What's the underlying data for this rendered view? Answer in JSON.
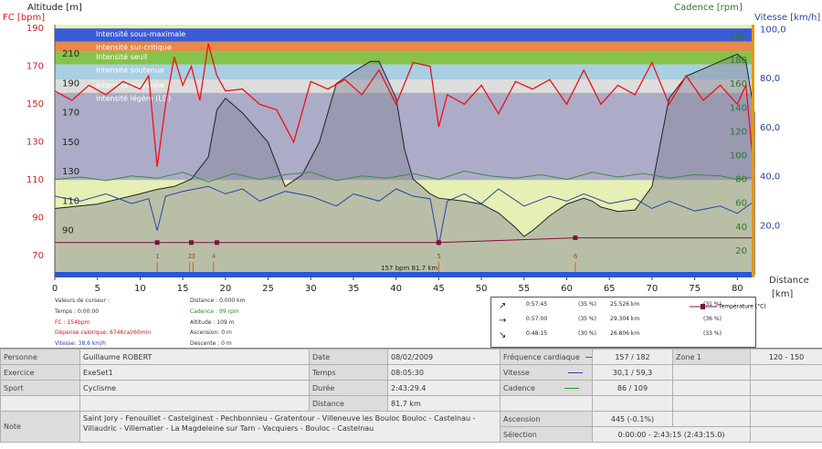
{
  "axes": {
    "left_title": "FC [bpm]",
    "alt_title": "Altitude  [m]",
    "cadence_title": "Cadence [rpm]",
    "speed_title": "Vitesse [km/h]",
    "distance_title": "Distance",
    "distance_unit": "[km]",
    "fc_ticks": [
      "190",
      "170",
      "150",
      "130",
      "110",
      "90",
      "70"
    ],
    "alt_ticks": [
      "210",
      "190",
      "170",
      "150",
      "130",
      "110",
      "90"
    ],
    "cad_ticks": [
      "200",
      "180",
      "160",
      "140",
      "120",
      "100",
      "80",
      "60",
      "40",
      "20"
    ],
    "speed_ticks": [
      "100,0",
      "80,0",
      "60,0",
      "40,0",
      "20,0"
    ],
    "x_ticks": [
      "0",
      "5",
      "10",
      "15",
      "20",
      "25",
      "30",
      "35",
      "40",
      "45",
      "50",
      "55",
      "60",
      "65",
      "70",
      "75",
      "80"
    ]
  },
  "zones": [
    {
      "label": "Intensité sous-maximale",
      "color": "#3b5bd6"
    },
    {
      "label": "Intensité sur-critique",
      "color": "#e58a4a"
    },
    {
      "label": "Intensité seuil",
      "color": "#86c34a"
    },
    {
      "label": "Intensité soutenue",
      "color": "#a9cfe2"
    },
    {
      "label": "Intensité moyenne",
      "color": "#dddddd"
    },
    {
      "label": "Intensité légère (LD)",
      "color": "#acacc8"
    }
  ],
  "chart_data": {
    "type": "line",
    "x_range": [
      0,
      82
    ],
    "xlabel": "Distance",
    "x_unit": "[km]",
    "ylim_fc": [
      60,
      192
    ],
    "ylim_altitude": [
      60,
      230
    ],
    "ylim_cadence": [
      0,
      210
    ],
    "ylim_speed": [
      0,
      102
    ],
    "series": [
      {
        "name": "Fréquence cardiaque",
        "axis": "fc",
        "color": "#ee1111",
        "x": [
          0,
          2,
          4,
          6,
          8,
          10,
          11,
          12,
          13,
          14,
          15,
          16,
          17,
          18,
          19,
          20,
          22,
          24,
          26,
          28,
          30,
          32,
          34,
          36,
          38,
          40,
          42,
          44,
          45,
          46,
          48,
          50,
          52,
          54,
          56,
          58,
          60,
          62,
          64,
          66,
          68,
          70,
          72,
          74,
          76,
          78,
          80,
          81,
          82
        ],
        "y": [
          157,
          152,
          160,
          155,
          162,
          158,
          165,
          117,
          150,
          175,
          160,
          170,
          152,
          182,
          165,
          157,
          158,
          150,
          147,
          130,
          162,
          158,
          163,
          155,
          168,
          150,
          172,
          170,
          138,
          155,
          150,
          160,
          145,
          162,
          158,
          163,
          150,
          168,
          150,
          160,
          155,
          172,
          150,
          165,
          152,
          160,
          150,
          160,
          112
        ]
      },
      {
        "name": "Cadence",
        "axis": "cadence",
        "color": "#3d8c3d",
        "x": [
          0,
          3,
          6,
          9,
          12,
          15,
          18,
          21,
          24,
          27,
          30,
          33,
          36,
          39,
          42,
          45,
          48,
          51,
          54,
          57,
          60,
          63,
          66,
          69,
          72,
          75,
          78,
          80,
          82
        ],
        "y": [
          80,
          82,
          79,
          83,
          81,
          86,
          78,
          85,
          80,
          84,
          86,
          79,
          83,
          81,
          85,
          80,
          87,
          83,
          81,
          84,
          80,
          86,
          82,
          85,
          81,
          84,
          83,
          80,
          82
        ]
      },
      {
        "name": "Vitesse",
        "axis": "speed",
        "color": "#2844a8",
        "x": [
          0,
          3,
          6,
          9,
          11,
          12,
          13,
          15,
          18,
          20,
          22,
          24,
          27,
          30,
          33,
          35,
          38,
          40,
          42,
          44,
          45,
          46,
          48,
          50,
          52,
          55,
          58,
          60,
          62,
          65,
          68,
          70,
          72,
          75,
          78,
          80,
          82
        ],
        "y": [
          32,
          30,
          33,
          29,
          31,
          18,
          32,
          34,
          36,
          33,
          35,
          30,
          34,
          32,
          28,
          33,
          30,
          35,
          32,
          31,
          12,
          30,
          33,
          29,
          35,
          28,
          32,
          30,
          33,
          29,
          31,
          27,
          30,
          26,
          28,
          25,
          30
        ]
      },
      {
        "name": "Altitude",
        "axis": "altitude",
        "color": "#222222",
        "x": [
          0,
          5,
          10,
          12,
          14,
          16,
          18,
          19,
          20,
          22,
          25,
          27,
          29,
          31,
          33,
          35,
          37,
          38,
          40,
          41,
          42,
          43,
          44,
          45,
          48,
          50,
          52,
          54,
          55,
          56,
          57,
          58,
          60,
          62,
          63,
          64,
          66,
          68,
          70,
          71,
          72,
          74,
          76,
          78,
          80,
          81,
          82
        ],
        "y": [
          105,
          108,
          115,
          118,
          120,
          125,
          140,
          172,
          180,
          170,
          150,
          120,
          128,
          150,
          190,
          198,
          205,
          205,
          180,
          145,
          125,
          120,
          115,
          112,
          110,
          108,
          102,
          92,
          86,
          90,
          95,
          100,
          108,
          112,
          110,
          106,
          103,
          104,
          120,
          150,
          180,
          195,
          200,
          205,
          210,
          205,
          170
        ]
      },
      {
        "name": "Température",
        "axis": "cadence",
        "color": "#8a0a3c",
        "x": [
          0,
          12,
          16,
          19,
          45,
          61,
          82
        ],
        "y": [
          27,
          27,
          27,
          27,
          27,
          31,
          31
        ]
      }
    ],
    "laps": [
      {
        "label": "1",
        "x": 12
      },
      {
        "label": "2",
        "x": 15.8
      },
      {
        "label": "3",
        "x": 16.2
      },
      {
        "label": "4",
        "x": 18.6
      },
      {
        "label": "5",
        "x": 45
      },
      {
        "label": "6",
        "x": 61
      }
    ],
    "bottom_marker": "157 bpm 81.7 km"
  },
  "cursor": {
    "title": "Valeurs de curseur :",
    "temps": "Temps : 0:00:00",
    "fc": "FC : 154bpm",
    "depense": "Dépense calorique: 674Kcal/60min",
    "vitesse": "Vitesse: 38,6 km/h",
    "distance": "Distance : 0.000 km",
    "cadence": "Cadence : 99 rpm",
    "altitude": "Altitude : 109 m",
    "ascension": "Ascension: 0 m",
    "descente": "Descente : 0 m",
    "colors": {
      "fc": "#dd1111",
      "depense": "#dd1111",
      "vitesse": "#2844a8",
      "cadence": "#2a8a2a"
    }
  },
  "summary": {
    "rows": [
      {
        "dir": "↗",
        "time": "0:57:45",
        "pct_time": "(35 %)",
        "dist": "25.526 km",
        "pct_dist": "(31 %)"
      },
      {
        "dir": "→",
        "time": "0:57:00",
        "pct_time": "(35 %)",
        "dist": "29.304 km",
        "pct_dist": "(36 %)"
      },
      {
        "dir": "↘",
        "time": "0:48:15",
        "pct_time": "(30 %)",
        "dist": "26.806 km",
        "pct_dist": "(33 %)"
      }
    ],
    "temperature_legend": "Température (°C)"
  },
  "info": {
    "personne_label": "Personne",
    "personne": "Guillaume ROBERT",
    "exercice_label": "Exercice",
    "exercice": "ExeSet1",
    "sport_label": "Sport",
    "sport": "Cyclisme",
    "note_label": "Note",
    "note": "Saint Jory - Fenouillet - Castelginest - Pechbonnieu - Gratentour - Villeneuve les Bouloc Bouloc - Castelnau - Villaudric - Villematier - La Magdeleine sur Tarn - Vacquiers - Bouloc - Castelnau",
    "date_label": "Date",
    "date": "08/02/2009",
    "temps_label": "Temps",
    "temps": "08:05:30",
    "duree_label": "Durée",
    "duree": "2:43:29.4",
    "distance_label": "Distance",
    "distance": "81.7 km",
    "fc_label": "Fréquence cardiaque",
    "fc": "157 / 182",
    "vitesse_label": "Vitesse",
    "vitesse": "30,1 / 59,3",
    "cadence_label": "Cadence",
    "cadence": "86 / 109",
    "ascension_label": "Ascension",
    "ascension": "445 (-0.1%)",
    "selection_label": "Sélection",
    "selection": "0:00:00 - 2:43:15 (2:43:15.0)",
    "zone_label": "Zone 1",
    "zone": "120 - 150",
    "fc_color": "#dd2222",
    "vitesse_color": "#2844a8",
    "cadence_color": "#2a9a2a"
  }
}
